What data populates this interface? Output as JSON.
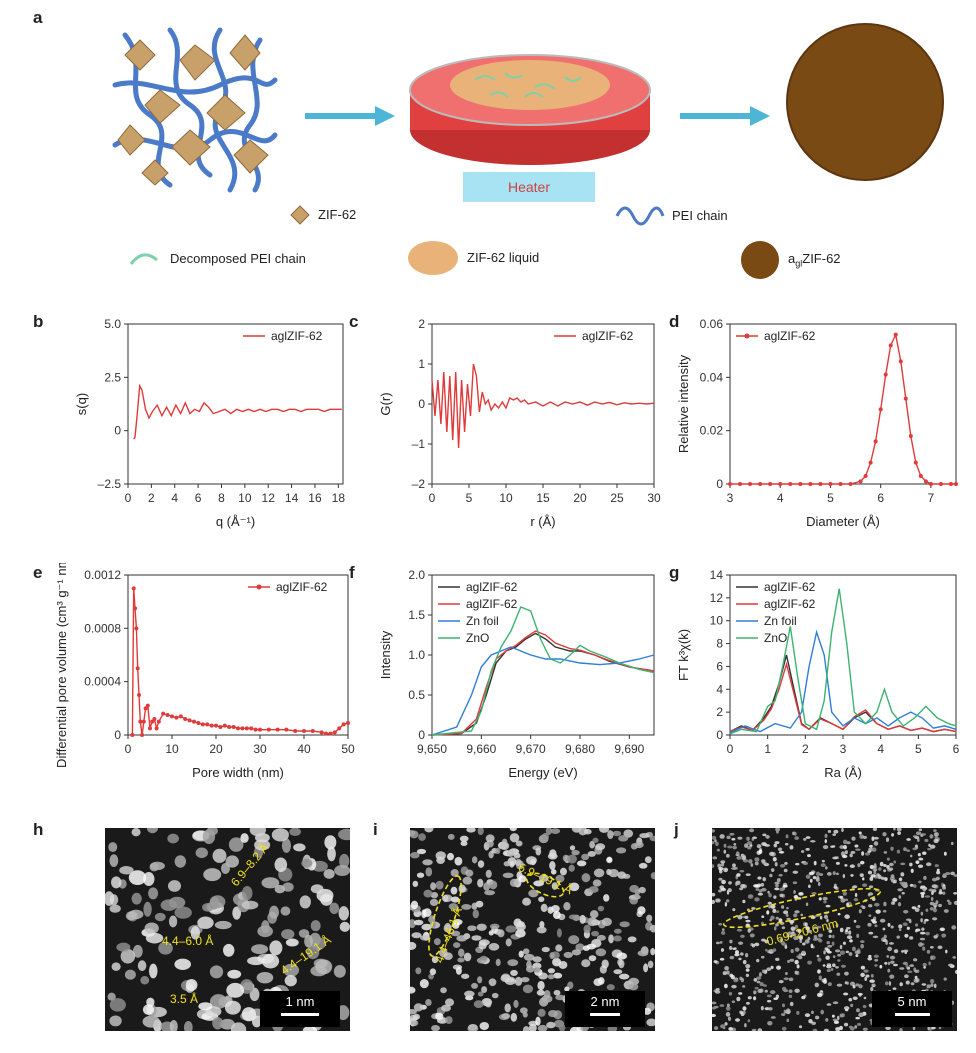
{
  "panel_labels": [
    "a",
    "b",
    "c",
    "d",
    "e",
    "f",
    "g",
    "h",
    "i",
    "j"
  ],
  "schematic": {
    "heater_label": "Heater",
    "legend": {
      "zif62": "ZIF-62",
      "pei_chain": "PEI chain",
      "decomposed_pei": "Decomposed PEI chain",
      "zif62_liquid": "ZIF-62 liquid",
      "agl_prefix": "a",
      "agl_sub": "gl",
      "agl_suffix": "ZIF-62"
    },
    "colors": {
      "arrow": "#4db6d6",
      "pei": "#4a7ac8",
      "zif": "#c8a06a",
      "liquid": "#e9b279",
      "dish_liquid": "#e04040",
      "disk": "#7a4a14",
      "decomposed": "#7fd1a8"
    }
  },
  "micrographs": [
    {
      "annotations": [
        "6.9–8.2 Å",
        "4.4–6.0 Å",
        "4.4–19.1 Å",
        "3.5 Å"
      ],
      "scale_label": "1 nm"
    },
    {
      "annotations": [
        "4.4–46.1 Å",
        "6.9–19.1 Å"
      ],
      "scale_label": "2 nm"
    },
    {
      "annotations": [
        "0.69–20.6 nm"
      ],
      "scale_label": "5 nm"
    }
  ],
  "chart_data": [
    {
      "panel": "b",
      "type": "line",
      "ylabel": "s(q)",
      "xlabel": "q (Å⁻¹)",
      "xlim": [
        0,
        18.4
      ],
      "ylim": [
        -2.5,
        5.0
      ],
      "xticks": [
        0,
        2,
        4,
        6,
        8,
        10,
        12,
        14,
        16,
        18
      ],
      "yticks": [
        -2.5,
        0,
        2.5,
        5.0
      ],
      "ytick_labels": [
        "–2.5",
        "0",
        "2.5",
        "5.0"
      ],
      "legend": {
        "position": "top-right",
        "entries": [
          "agl ZIF-62"
        ]
      },
      "series": [
        {
          "name": "aglZIF-62",
          "color": "#e03a3a",
          "x": [
            0.5,
            0.6,
            0.8,
            1.0,
            1.2,
            1.5,
            1.8,
            2.1,
            2.5,
            2.9,
            3.3,
            3.7,
            4.1,
            4.5,
            4.9,
            5.3,
            5.7,
            6.1,
            6.5,
            6.9,
            7.3,
            7.8,
            8.3,
            8.8,
            9.3,
            9.8,
            10.3,
            10.8,
            11.3,
            11.8,
            12.3,
            12.8,
            13.3,
            13.8,
            14.3,
            14.8,
            15.3,
            15.8,
            16.3,
            16.8,
            17.3,
            17.8,
            18.3
          ],
          "y": [
            -0.4,
            -0.3,
            0.8,
            2.1,
            1.9,
            1.0,
            0.6,
            0.9,
            1.2,
            0.7,
            1.1,
            0.7,
            1.2,
            0.8,
            1.3,
            0.8,
            1.0,
            0.9,
            1.3,
            1.1,
            0.8,
            0.9,
            1.0,
            0.8,
            1.0,
            0.9,
            1.0,
            0.9,
            1.0,
            0.9,
            1.0,
            1.0,
            0.9,
            1.0,
            1.0,
            0.9,
            1.0,
            1.0,
            1.0,
            0.9,
            1.0,
            1.0,
            1.0
          ]
        }
      ]
    },
    {
      "panel": "c",
      "type": "line",
      "ylabel": "G(r)",
      "xlabel": "r (Å)",
      "xlim": [
        0,
        30
      ],
      "ylim": [
        -2,
        2
      ],
      "xticks": [
        0,
        5,
        10,
        15,
        20,
        25,
        30
      ],
      "yticks": [
        -2,
        -1,
        0,
        1,
        2
      ],
      "ytick_labels": [
        "–2",
        "–1",
        "0",
        "1",
        "2"
      ],
      "legend": {
        "position": "top-right",
        "entries": [
          "agl ZIF-62"
        ]
      },
      "series": [
        {
          "name": "aglZIF-62",
          "color": "#e03a3a",
          "x": [
            0,
            0.4,
            0.8,
            1.2,
            1.6,
            2.0,
            2.4,
            2.8,
            3.2,
            3.6,
            4.0,
            4.4,
            4.8,
            5.2,
            5.6,
            6.0,
            6.4,
            6.8,
            7.2,
            7.6,
            8.0,
            8.5,
            9.0,
            9.5,
            10,
            10.5,
            11,
            11.5,
            12,
            12.5,
            13,
            14,
            15,
            16,
            17,
            18,
            19,
            20,
            21,
            22,
            23,
            24,
            25,
            26,
            27,
            28,
            29,
            30
          ],
          "y": [
            0.6,
            -0.3,
            0.6,
            -0.5,
            0.8,
            -0.7,
            0.7,
            -0.9,
            0.8,
            -1.1,
            0.6,
            -0.7,
            0.5,
            -0.3,
            1.0,
            0.7,
            -0.2,
            0.3,
            0.0,
            0.1,
            -0.15,
            0.0,
            -0.1,
            0.05,
            -0.1,
            0.15,
            0.1,
            0.15,
            0.05,
            0.1,
            0.0,
            0.05,
            -0.05,
            0.05,
            -0.05,
            0.05,
            0.0,
            0.05,
            -0.03,
            0.05,
            0.0,
            0.04,
            -0.02,
            0.03,
            0.0,
            0.02,
            0.0,
            0.02
          ]
        }
      ]
    },
    {
      "panel": "d",
      "type": "line",
      "ylabel": "Relative intensity",
      "xlabel": "Diameter (Å)",
      "xlim": [
        3,
        7.5
      ],
      "ylim": [
        0,
        0.06
      ],
      "xticks": [
        3,
        4,
        5,
        6,
        7
      ],
      "yticks": [
        0,
        0.02,
        0.04,
        0.06
      ],
      "ytick_labels": [
        "0",
        "0.02",
        "0.04",
        "0.06"
      ],
      "legend": {
        "position": "top-left",
        "entries": [
          "agl ZIF-62"
        ]
      },
      "series": [
        {
          "name": "aglZIF-62",
          "color": "#e03a3a",
          "markers": true,
          "x": [
            3.0,
            3.2,
            3.4,
            3.6,
            3.8,
            4.0,
            4.2,
            4.4,
            4.6,
            4.8,
            5.0,
            5.2,
            5.4,
            5.6,
            5.7,
            5.8,
            5.9,
            6.0,
            6.1,
            6.2,
            6.3,
            6.4,
            6.5,
            6.6,
            6.7,
            6.8,
            6.9,
            7.0,
            7.2,
            7.4,
            7.5
          ],
          "y": [
            0,
            0,
            0,
            0,
            0,
            0,
            0,
            0,
            0,
            0,
            0,
            0,
            0,
            0.001,
            0.003,
            0.008,
            0.016,
            0.028,
            0.041,
            0.052,
            0.056,
            0.046,
            0.032,
            0.018,
            0.008,
            0.003,
            0.001,
            0,
            0,
            0,
            0
          ]
        }
      ]
    },
    {
      "panel": "e",
      "type": "line",
      "ylabel": "Differential pore volume (cm³ g⁻¹ nm⁻¹)",
      "xlabel": "Pore width (nm)",
      "xlim": [
        0,
        50
      ],
      "ylim": [
        0,
        0.0012
      ],
      "xticks": [
        0,
        10,
        20,
        30,
        40,
        50
      ],
      "yticks": [
        0,
        0.0004,
        0.0008,
        0.0012
      ],
      "ytick_labels": [
        "0",
        "0.0004",
        "0.0008",
        "0.0012"
      ],
      "legend": {
        "position": "top-right",
        "entries": [
          "agl ZIF-62"
        ]
      },
      "series": [
        {
          "name": "aglZIF-62",
          "color": "#e03a3a",
          "markers": true,
          "x": [
            1.0,
            1.3,
            1.6,
            1.9,
            2.2,
            2.5,
            2.8,
            3.2,
            3.6,
            4.0,
            4.5,
            5.0,
            5.5,
            6,
            6.5,
            7,
            8,
            9,
            10,
            11,
            12,
            13,
            14,
            15,
            16,
            17,
            18,
            19,
            20,
            21,
            22,
            23,
            24,
            25,
            26,
            27,
            28,
            29,
            30,
            32,
            34,
            36,
            38,
            40,
            42,
            44,
            45,
            46,
            47,
            48,
            49,
            50
          ],
          "y": [
            0,
            0.0011,
            0.00095,
            0.0008,
            0.0005,
            0.0003,
            0.0001,
            0,
            0.0001,
            0.0002,
            0.00022,
            5e-05,
            0.0001,
            0.00012,
            5e-05,
            0.0001,
            0.00016,
            0.00015,
            0.00014,
            0.00013,
            0.00014,
            0.00012,
            0.00011,
            0.0001,
            9e-05,
            8e-05,
            8e-05,
            7e-05,
            7e-05,
            6e-05,
            7e-05,
            6e-05,
            6e-05,
            5e-05,
            5e-05,
            5e-05,
            5e-05,
            4e-05,
            4e-05,
            4e-05,
            4e-05,
            4e-05,
            3e-05,
            3e-05,
            3e-05,
            2e-05,
            1e-05,
            1e-05,
            2e-05,
            5e-05,
            8e-05,
            9e-05
          ]
        }
      ]
    },
    {
      "panel": "f",
      "type": "line",
      "ylabel": "Intensity",
      "xlabel": "Energy (eV)",
      "xlim": [
        9650,
        9695
      ],
      "ylim": [
        0,
        2.0
      ],
      "xticks": [
        9650,
        9660,
        9670,
        9680,
        9690
      ],
      "xtick_labels": [
        "9,650",
        "9,660",
        "9,670",
        "9,680",
        "9,690"
      ],
      "yticks": [
        0,
        0.5,
        1.0,
        1.5,
        2.0
      ],
      "ytick_labels": [
        "0",
        "0.5",
        "1.0",
        "1.5",
        "2.0"
      ],
      "legend": {
        "position": "top-left",
        "entries": [
          "agl ZIF-62",
          "agl ZIF-62",
          "Zn foil",
          "ZnO"
        ]
      },
      "series": [
        {
          "name": "aglZIF-62",
          "color": "#333333",
          "x": [
            9650,
            9656,
            9659,
            9661,
            9663,
            9665,
            9667,
            9669,
            9671,
            9673,
            9675,
            9678,
            9680,
            9683,
            9686,
            9690,
            9695
          ],
          "y": [
            0,
            0.02,
            0.15,
            0.5,
            0.9,
            1.05,
            1.1,
            1.2,
            1.27,
            1.2,
            1.1,
            1.05,
            1.05,
            1.0,
            0.92,
            0.85,
            0.8
          ]
        },
        {
          "name": "aglZIF-62",
          "color": "#e03a3a",
          "x": [
            9650,
            9656,
            9659,
            9661,
            9663,
            9665,
            9667,
            9669,
            9671,
            9673,
            9675,
            9678,
            9680,
            9683,
            9686,
            9690,
            9695
          ],
          "y": [
            0,
            0.02,
            0.2,
            0.6,
            0.95,
            1.05,
            1.12,
            1.22,
            1.3,
            1.25,
            1.15,
            1.08,
            1.06,
            1.0,
            0.93,
            0.85,
            0.8
          ]
        },
        {
          "name": "Zn foil",
          "color": "#2f7ed8",
          "x": [
            9650,
            9655,
            9658,
            9660,
            9662,
            9664,
            9666,
            9668,
            9670,
            9673,
            9676,
            9680,
            9684,
            9688,
            9692,
            9695
          ],
          "y": [
            0,
            0.1,
            0.5,
            0.85,
            1.0,
            1.05,
            1.1,
            1.05,
            1.0,
            0.95,
            0.95,
            0.9,
            0.88,
            0.9,
            0.95,
            1.0
          ]
        },
        {
          "name": "ZnO",
          "color": "#3cb371",
          "x": [
            9650,
            9658,
            9660,
            9662,
            9664,
            9666,
            9668,
            9670,
            9672,
            9674,
            9676,
            9678,
            9680,
            9682,
            9685,
            9688,
            9692,
            9695
          ],
          "y": [
            0,
            0.05,
            0.3,
            0.8,
            1.1,
            1.3,
            1.6,
            1.55,
            1.2,
            0.95,
            0.9,
            1.0,
            1.12,
            1.05,
            0.98,
            0.9,
            0.82,
            0.78
          ]
        }
      ]
    },
    {
      "panel": "g",
      "type": "line",
      "ylabel": "FT k³χ(k)",
      "xlabel": "Ra (Å)",
      "xlim": [
        0,
        6
      ],
      "ylim": [
        0,
        14
      ],
      "xticks": [
        0,
        1,
        2,
        3,
        4,
        5,
        6
      ],
      "yticks": [
        0,
        2,
        4,
        6,
        8,
        10,
        12,
        14
      ],
      "legend": {
        "position": "top-left",
        "entries": [
          "agl ZIF-62",
          "agl ZIF-62",
          "Zn foil",
          "ZnO"
        ]
      },
      "series": [
        {
          "name": "aglZIF-62",
          "color": "#333333",
          "x": [
            0,
            0.3,
            0.6,
            0.9,
            1.1,
            1.3,
            1.5,
            1.7,
            1.9,
            2.1,
            2.4,
            2.7,
            3.0,
            3.3,
            3.6,
            3.9,
            4.2,
            4.5,
            4.8,
            5.1,
            5.4,
            5.7,
            6.0
          ],
          "y": [
            0.3,
            0.8,
            0.4,
            1.5,
            2.5,
            4.5,
            7.0,
            4.0,
            1.0,
            0.5,
            1.5,
            1.0,
            0.5,
            1.5,
            2.0,
            1.0,
            0.5,
            0.8,
            0.4,
            0.6,
            0.3,
            0.5,
            0.3
          ]
        },
        {
          "name": "aglZIF-62",
          "color": "#e03a3a",
          "x": [
            0,
            0.3,
            0.6,
            0.9,
            1.1,
            1.3,
            1.5,
            1.7,
            1.9,
            2.1,
            2.4,
            2.7,
            3.0,
            3.3,
            3.6,
            3.9,
            4.2,
            4.5,
            4.8,
            5.1,
            5.4,
            5.7,
            6.0
          ],
          "y": [
            0.3,
            0.7,
            0.4,
            1.3,
            2.3,
            4.0,
            6.2,
            3.6,
            0.9,
            0.5,
            1.4,
            1.0,
            0.5,
            1.6,
            2.2,
            1.0,
            0.5,
            0.8,
            0.4,
            0.6,
            0.3,
            0.5,
            0.3
          ]
        },
        {
          "name": "Zn foil",
          "color": "#2f7ed8",
          "x": [
            0,
            0.4,
            0.8,
            1.2,
            1.6,
            1.9,
            2.1,
            2.3,
            2.5,
            2.7,
            3.0,
            3.3,
            3.6,
            3.9,
            4.2,
            4.5,
            4.8,
            5.1,
            5.4,
            5.7,
            6.0
          ],
          "y": [
            0.2,
            0.8,
            0.3,
            1.0,
            0.6,
            2.0,
            6.0,
            9.0,
            7.0,
            2.0,
            0.8,
            1.5,
            1.0,
            1.5,
            0.8,
            1.5,
            2.0,
            1.5,
            0.6,
            0.8,
            0.5
          ]
        },
        {
          "name": "ZnO",
          "color": "#3cb371",
          "x": [
            0,
            0.3,
            0.7,
            1.0,
            1.2,
            1.4,
            1.6,
            1.8,
            2.0,
            2.3,
            2.5,
            2.7,
            2.9,
            3.1,
            3.3,
            3.6,
            3.9,
            4.1,
            4.3,
            4.6,
            4.9,
            5.2,
            5.5,
            5.8,
            6.0
          ],
          "y": [
            0.1,
            0.5,
            0.3,
            2.5,
            3.0,
            6.0,
            9.5,
            5.0,
            1.0,
            0.5,
            3.0,
            9.0,
            12.8,
            8.0,
            2.0,
            1.0,
            2.0,
            4.0,
            2.0,
            0.8,
            1.5,
            2.5,
            1.5,
            1.0,
            0.8
          ]
        }
      ]
    }
  ]
}
